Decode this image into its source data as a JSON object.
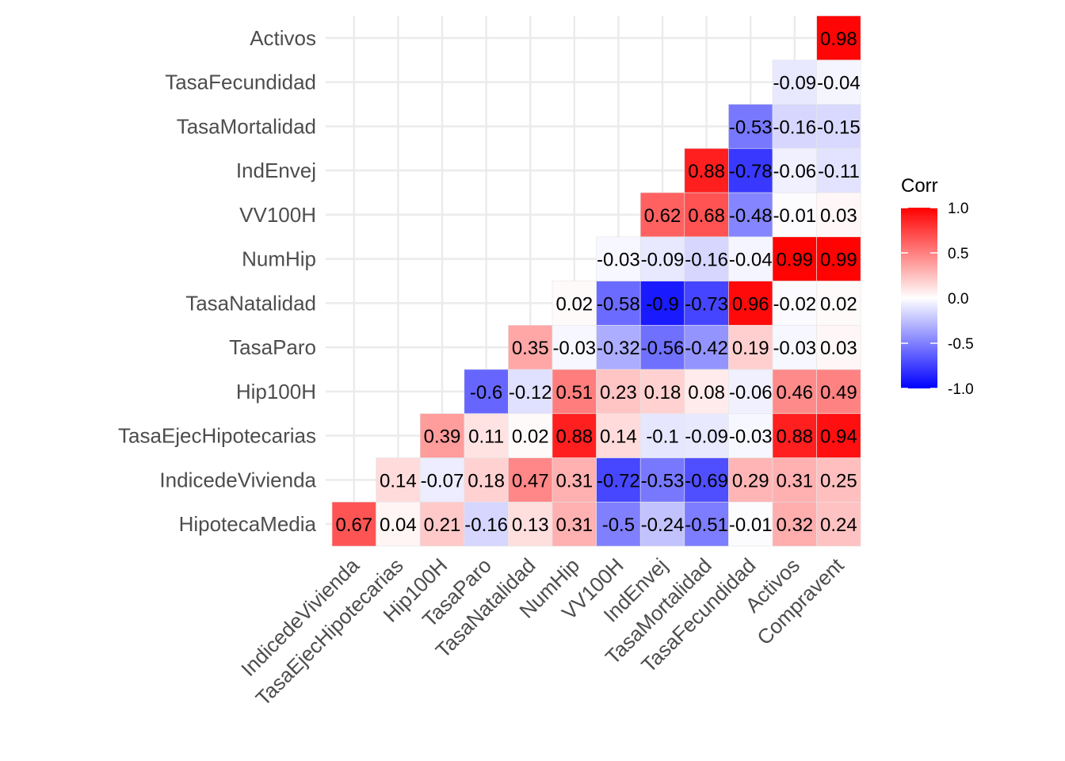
{
  "chart_data": {
    "type": "heatmap",
    "title": "",
    "xlabel": "",
    "ylabel": "",
    "x_categories": [
      "IndicedeVivienda",
      "TasaEjecHipotecarias",
      "Hip100H",
      "TasaParo",
      "TasaNatalidad",
      "NumHip",
      "VV100H",
      "IndEnvej",
      "TasaMortalidad",
      "TasaFecundidad",
      "Activos",
      "Compravent"
    ],
    "y_categories": [
      "HipotecaMedia",
      "IndicedeVivienda",
      "TasaEjecHipotecarias",
      "Hip100H",
      "TasaParo",
      "TasaNatalidad",
      "NumHip",
      "VV100H",
      "IndEnvej",
      "TasaMortalidad",
      "TasaFecundidad",
      "Activos"
    ],
    "values": [
      [
        0.67,
        0.04,
        0.21,
        -0.16,
        0.13,
        0.31,
        -0.5,
        -0.24,
        -0.51,
        -0.01,
        0.32,
        0.24
      ],
      [
        null,
        0.14,
        -0.07,
        0.18,
        0.47,
        0.31,
        -0.72,
        -0.53,
        -0.69,
        0.29,
        0.31,
        0.25
      ],
      [
        null,
        null,
        0.39,
        0.11,
        0.02,
        0.88,
        0.14,
        -0.1,
        -0.09,
        -0.03,
        0.88,
        0.94
      ],
      [
        null,
        null,
        null,
        -0.6,
        -0.12,
        0.51,
        0.23,
        0.18,
        0.08,
        -0.06,
        0.46,
        0.49
      ],
      [
        null,
        null,
        null,
        null,
        0.35,
        -0.03,
        -0.32,
        -0.56,
        -0.42,
        0.19,
        -0.03,
        0.03
      ],
      [
        null,
        null,
        null,
        null,
        null,
        0.02,
        -0.58,
        -0.9,
        -0.73,
        0.96,
        -0.02,
        0.02
      ],
      [
        null,
        null,
        null,
        null,
        null,
        null,
        -0.03,
        -0.09,
        -0.16,
        -0.04,
        0.99,
        0.99
      ],
      [
        null,
        null,
        null,
        null,
        null,
        null,
        null,
        0.62,
        0.68,
        -0.48,
        -0.01,
        0.03
      ],
      [
        null,
        null,
        null,
        null,
        null,
        null,
        null,
        null,
        0.88,
        -0.78,
        -0.06,
        -0.11
      ],
      [
        null,
        null,
        null,
        null,
        null,
        null,
        null,
        null,
        null,
        -0.53,
        -0.16,
        -0.15
      ],
      [
        null,
        null,
        null,
        null,
        null,
        null,
        null,
        null,
        null,
        null,
        -0.09,
        -0.04
      ],
      [
        null,
        null,
        null,
        null,
        null,
        null,
        null,
        null,
        null,
        null,
        null,
        0.98
      ]
    ],
    "color_scale": {
      "min": -1.0,
      "mid": 0.0,
      "max": 1.0,
      "low_color": "#0000ff",
      "mid_color": "#ffffff",
      "high_color": "#ff0000"
    },
    "legend": {
      "title": "Corr",
      "placement": "right",
      "ticks": [
        1.0,
        0.5,
        0.0,
        -0.5,
        -1.0
      ],
      "tick_labels": [
        "1.0",
        "0.5",
        "0.0",
        "-0.5",
        "-1.0"
      ]
    },
    "grid": true
  }
}
